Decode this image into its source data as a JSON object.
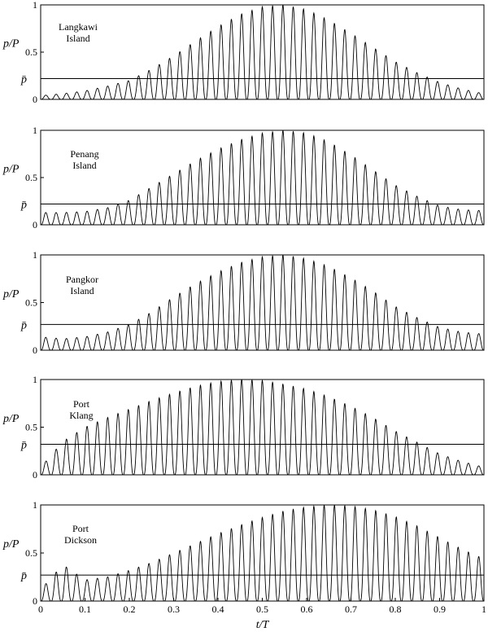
{
  "chart_data": [
    {
      "type": "line",
      "label_lines": [
        "Langkawi",
        "Island"
      ],
      "ylabel": "p/P",
      "mean_label": "p̄",
      "yticks": [
        "0",
        "0.5",
        "1"
      ],
      "ylim": [
        0,
        1
      ],
      "xlim": [
        0,
        1
      ],
      "mean_value": 0.22,
      "series": [
        {
          "x": [
            0.0,
            0.05,
            0.1,
            0.15,
            0.2,
            0.25,
            0.3,
            0.35,
            0.4,
            0.45,
            0.5,
            0.55,
            0.6,
            0.65,
            0.7,
            0.75,
            0.8,
            0.85,
            0.9,
            0.95,
            1.0
          ],
          "values": [
            0.04,
            0.06,
            0.09,
            0.14,
            0.2,
            0.32,
            0.46,
            0.62,
            0.77,
            0.9,
            0.98,
            1.0,
            0.95,
            0.84,
            0.7,
            0.55,
            0.4,
            0.28,
            0.18,
            0.11,
            0.06
          ]
        }
      ]
    },
    {
      "type": "line",
      "label_lines": [
        "Penang",
        "Island"
      ],
      "ylabel": "p/P",
      "mean_label": "p̄",
      "yticks": [
        "0",
        "0.5",
        "1"
      ],
      "ylim": [
        0,
        1
      ],
      "xlim": [
        0,
        1
      ],
      "mean_value": 0.22,
      "series": [
        {
          "x": [
            0.0,
            0.05,
            0.1,
            0.15,
            0.2,
            0.25,
            0.3,
            0.35,
            0.4,
            0.45,
            0.5,
            0.55,
            0.6,
            0.65,
            0.7,
            0.75,
            0.8,
            0.85,
            0.9,
            0.95,
            1.0
          ],
          "values": [
            0.13,
            0.13,
            0.14,
            0.18,
            0.26,
            0.4,
            0.54,
            0.68,
            0.8,
            0.9,
            0.97,
            1.0,
            0.97,
            0.88,
            0.74,
            0.58,
            0.42,
            0.3,
            0.2,
            0.16,
            0.15
          ]
        }
      ]
    },
    {
      "type": "line",
      "label_lines": [
        "Pangkor",
        "Island"
      ],
      "ylabel": "p/P",
      "mean_label": "p̄",
      "yticks": [
        "0",
        "0.5",
        "1"
      ],
      "ylim": [
        0,
        1
      ],
      "xlim": [
        0,
        1
      ],
      "mean_value": 0.27,
      "series": [
        {
          "x": [
            0.0,
            0.05,
            0.1,
            0.15,
            0.2,
            0.25,
            0.3,
            0.35,
            0.4,
            0.45,
            0.5,
            0.55,
            0.6,
            0.65,
            0.7,
            0.75,
            0.8,
            0.85,
            0.9,
            0.95,
            1.0
          ],
          "values": [
            0.14,
            0.12,
            0.14,
            0.19,
            0.27,
            0.4,
            0.56,
            0.7,
            0.82,
            0.92,
            0.98,
            1.0,
            0.96,
            0.88,
            0.76,
            0.62,
            0.46,
            0.34,
            0.24,
            0.19,
            0.17
          ]
        }
      ]
    },
    {
      "type": "line",
      "label_lines": [
        "Port",
        "Klang"
      ],
      "ylabel": "p/P",
      "mean_label": "p̄",
      "yticks": [
        "0",
        "0.5",
        "1"
      ],
      "ylim": [
        0,
        1
      ],
      "xlim": [
        0,
        1
      ],
      "mean_value": 0.32,
      "series": [
        {
          "x": [
            0.0,
            0.05,
            0.1,
            0.15,
            0.2,
            0.25,
            0.3,
            0.35,
            0.4,
            0.45,
            0.5,
            0.55,
            0.6,
            0.65,
            0.7,
            0.75,
            0.8,
            0.85,
            0.9,
            0.95,
            1.0
          ],
          "values": [
            0.08,
            0.35,
            0.5,
            0.6,
            0.69,
            0.78,
            0.86,
            0.93,
            0.98,
            1.0,
            0.99,
            0.95,
            0.9,
            0.82,
            0.72,
            0.6,
            0.46,
            0.34,
            0.22,
            0.14,
            0.08
          ]
        }
      ]
    },
    {
      "type": "line",
      "label_lines": [
        "Port",
        "Dickson"
      ],
      "ylabel": "p/P",
      "mean_label": "p̄",
      "yticks": [
        "0",
        "0.5",
        "1"
      ],
      "ylim": [
        0,
        1
      ],
      "xlim": [
        0,
        1
      ],
      "xlabel": "t/T",
      "xticks": [
        "0",
        "0.1",
        "0.2",
        "0.3",
        "0.4",
        "0.5",
        "0.6",
        "0.7",
        "0.8",
        "0.9",
        "1"
      ],
      "mean_value": 0.27,
      "series": [
        {
          "x": [
            0.0,
            0.05,
            0.1,
            0.15,
            0.2,
            0.25,
            0.3,
            0.35,
            0.4,
            0.45,
            0.5,
            0.55,
            0.6,
            0.65,
            0.7,
            0.75,
            0.8,
            0.85,
            0.9,
            0.95,
            1.0
          ],
          "values": [
            0.12,
            0.38,
            0.22,
            0.25,
            0.32,
            0.4,
            0.5,
            0.6,
            0.7,
            0.79,
            0.87,
            0.94,
            0.98,
            1.0,
            0.99,
            0.95,
            0.88,
            0.78,
            0.66,
            0.54,
            0.44
          ]
        }
      ]
    }
  ]
}
